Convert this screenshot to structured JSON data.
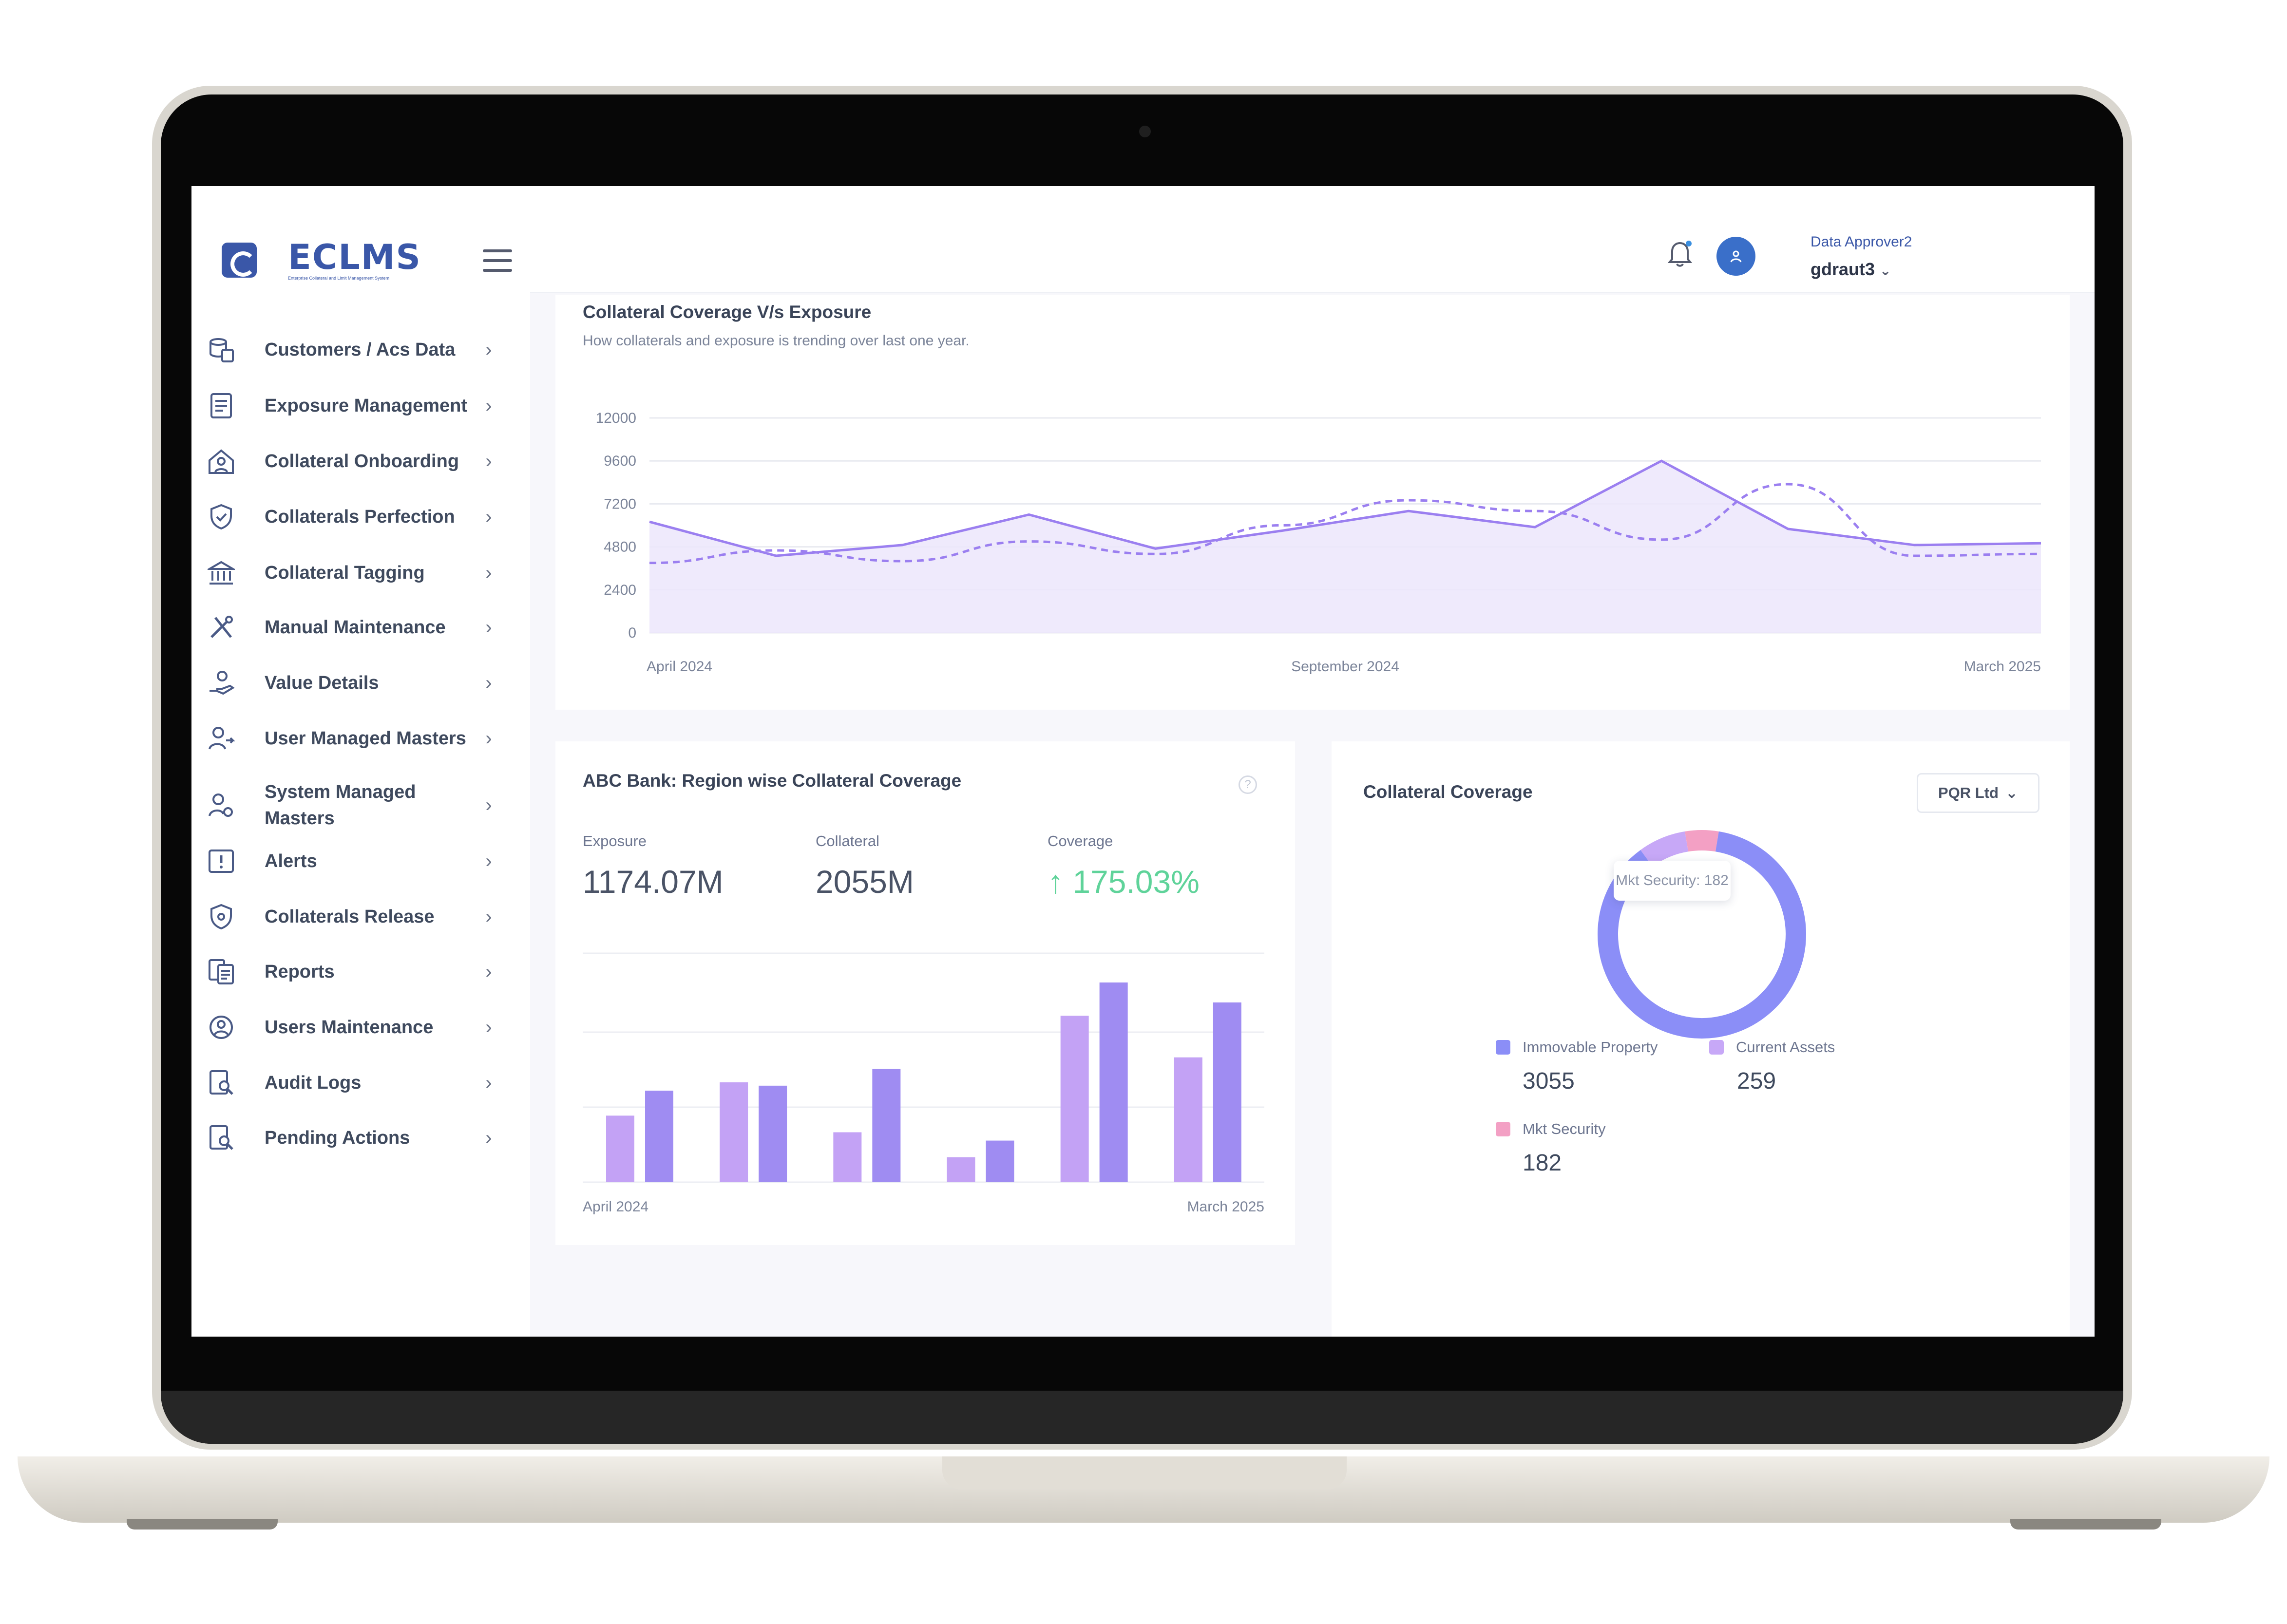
{
  "app": {
    "name": "ECLMS",
    "tagline": "Enterprise Collateral and Limit Management System"
  },
  "header": {
    "role": "Data Approver2",
    "username": "gdraut3"
  },
  "sidebar": {
    "items": [
      {
        "label": "Customers / Acs Data",
        "icon": "database-icon"
      },
      {
        "label": "Exposure Management",
        "icon": "document-icon"
      },
      {
        "label": "Collateral Onboarding",
        "icon": "home-person-icon"
      },
      {
        "label": "Collaterals Perfection",
        "icon": "shield-check-icon"
      },
      {
        "label": "Collateral Tagging",
        "icon": "bank-icon"
      },
      {
        "label": "Manual Maintenance",
        "icon": "tools-icon"
      },
      {
        "label": "Value Details",
        "icon": "hand-coin-icon"
      },
      {
        "label": "User Managed Masters",
        "icon": "user-arrow-icon"
      },
      {
        "label": "System Managed Masters",
        "icon": "user-gear-icon"
      },
      {
        "label": "Alerts",
        "icon": "alert-icon"
      },
      {
        "label": "Collaterals Release",
        "icon": "shield-icon"
      },
      {
        "label": "Reports",
        "icon": "report-icon"
      },
      {
        "label": "Users Maintenance",
        "icon": "user-support-icon"
      },
      {
        "label": "Audit Logs",
        "icon": "search-document-icon"
      },
      {
        "label": "Pending Actions",
        "icon": "search-document-icon"
      }
    ]
  },
  "trend_card": {
    "title": "Collateral Coverage V/s Exposure",
    "subtitle": "How collaterals and exposure is trending over last one year."
  },
  "region_card": {
    "title": "ABC Bank: Region wise Collateral Coverage",
    "stats": [
      {
        "label": "Exposure",
        "value": "1174.07M"
      },
      {
        "label": "Collateral",
        "value": "2055M"
      },
      {
        "label": "Coverage",
        "value": "175.03%",
        "arrow": "↑"
      }
    ]
  },
  "coverage_card": {
    "title": "Collateral Coverage",
    "dropdown": "PQR Ltd",
    "tooltip": "Mkt Security: 182",
    "legend": [
      {
        "label": "Immovable Property",
        "value": "3055",
        "color": "#8b8ef7"
      },
      {
        "label": "Current Assets",
        "value": "259",
        "color": "#c7a8f7"
      },
      {
        "label": "Mkt Security",
        "value": "182",
        "color": "#f3a0c4"
      }
    ]
  },
  "colors": {
    "accent": "#3a57a8",
    "line": "#9b7ff0",
    "area": "#ece6fc",
    "bar_a": "#c3a2f5",
    "bar_b": "#9f8cf2",
    "positive": "#5fd39a"
  },
  "chart_data": [
    {
      "type": "area",
      "x_ticks": [
        "April 2024",
        "September 2024",
        "March 2025"
      ],
      "y_ticks": [
        "12000",
        "9600",
        "7200",
        "4800",
        "2400",
        "0"
      ],
      "ylim": [
        0,
        12000
      ],
      "grid": true,
      "series": [
        {
          "style": "solid",
          "values": [
            6200,
            4300,
            4900,
            6600,
            4700,
            5700,
            6800,
            5900,
            9600,
            5800,
            4900,
            5000
          ]
        },
        {
          "style": "dashed",
          "values": [
            3900,
            4600,
            4000,
            5100,
            4400,
            6000,
            7400,
            6800,
            5200,
            8300,
            4300,
            4400
          ]
        }
      ]
    },
    {
      "type": "bar",
      "x_ticks": [
        "April 2024",
        "March 2025"
      ],
      "series": [
        {
          "values": [
            40,
            60,
            30,
            15,
            100,
            75
          ]
        },
        {
          "values": [
            55,
            58,
            68,
            25,
            120,
            108
          ]
        }
      ]
    },
    {
      "type": "pie",
      "categories": [
        "Immovable Property",
        "Current Assets",
        "Mkt Security"
      ],
      "values": [
        3055,
        259,
        182
      ]
    }
  ]
}
